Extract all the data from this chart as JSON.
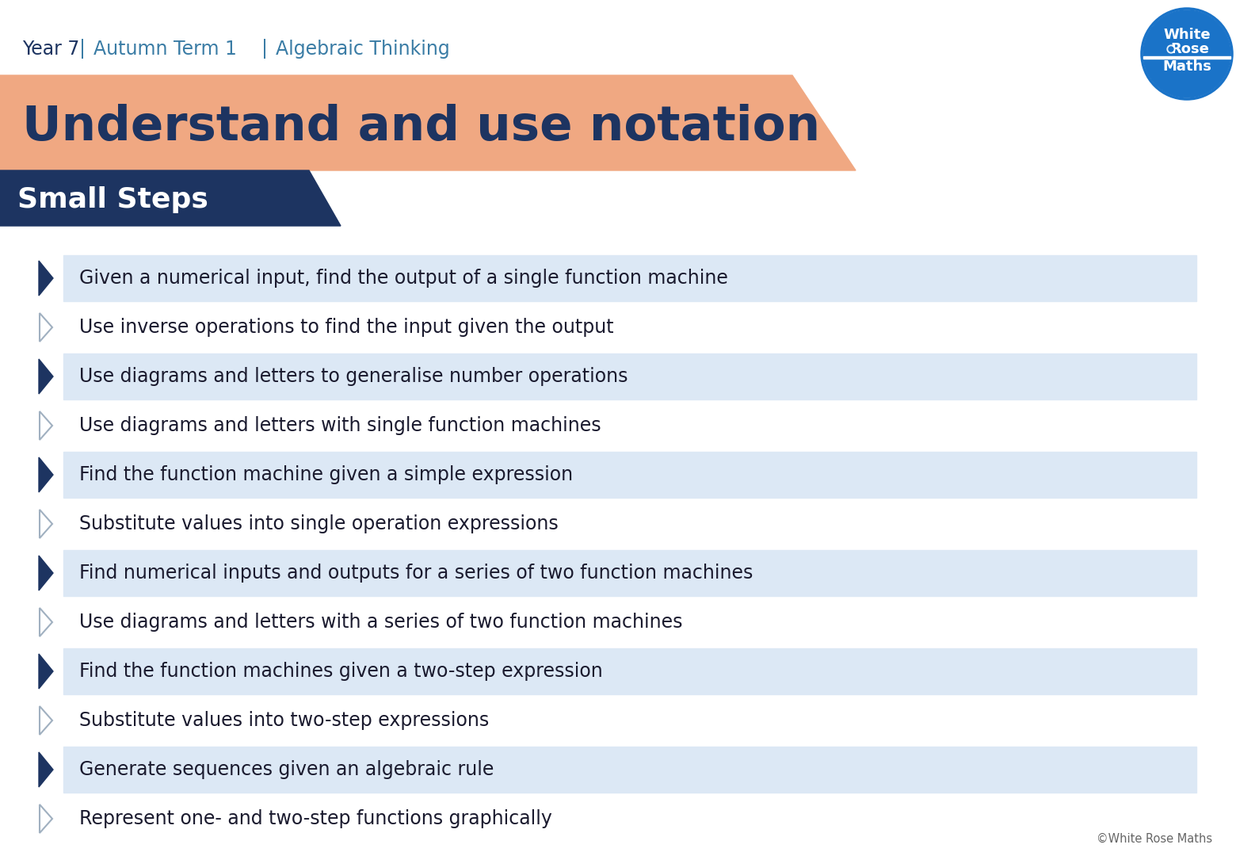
{
  "bg_color": "#ffffff",
  "header_color": "#1d3461",
  "header_year": "Year 7",
  "header_sep1": "|",
  "header_term": "  Autumn Term 1",
  "header_sep2": "|",
  "header_topic": " Algebraic Thinking",
  "header_accent_color": "#3a7ca5",
  "title": "Understand and use notation",
  "title_color": "#1d3461",
  "title_bg": "#f0a882",
  "small_steps_text": "Small Steps",
  "small_steps_bg": "#1d3461",
  "small_steps_color": "#ffffff",
  "steps": [
    {
      "text": "Given a numerical input, find the output of a single function machine",
      "highlight": true
    },
    {
      "text": "Use inverse operations to find the input given the output",
      "highlight": false
    },
    {
      "text": "Use diagrams and letters to generalise number operations",
      "highlight": true
    },
    {
      "text": "Use diagrams and letters with single function machines",
      "highlight": false
    },
    {
      "text": "Find the function machine given a simple expression",
      "highlight": true
    },
    {
      "text": "Substitute values into single operation expressions",
      "highlight": false
    },
    {
      "text": "Find numerical inputs and outputs for a series of two function machines",
      "highlight": true
    },
    {
      "text": "Use diagrams and letters with a series of two function machines",
      "highlight": false
    },
    {
      "text": "Find the function machines given a two-step expression",
      "highlight": true
    },
    {
      "text": "Substitute values into two-step expressions",
      "highlight": false
    },
    {
      "text": "Generate sequences given an algebraic rule",
      "highlight": true
    },
    {
      "text": "Represent one- and two-step functions graphically",
      "highlight": false
    }
  ],
  "highlight_row_bg": "#dce8f5",
  "dark_arrow_color": "#1d3461",
  "light_arrow_color": "#a0b0c0",
  "row_text_color": "#1a1a2e",
  "copyright_text": "©White Rose Maths",
  "wrm_circle_color": "#1a73c8",
  "wrm_line_color": "#1a73c8",
  "logo_top_text": "White",
  "logo_mid_text": "Rose",
  "logo_bot_text": "Maths"
}
